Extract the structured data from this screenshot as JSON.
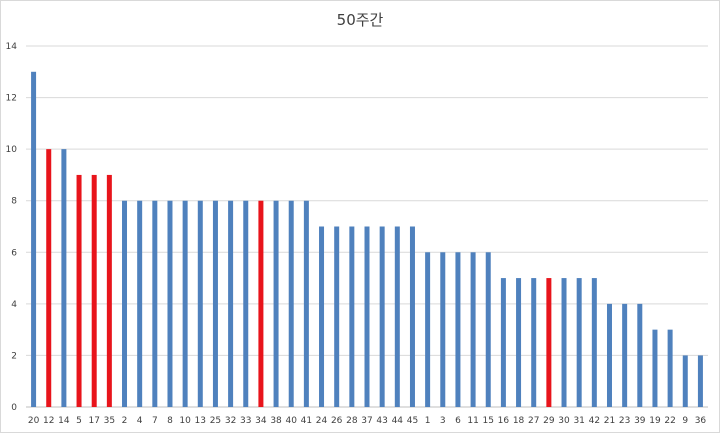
{
  "chart_data": {
    "type": "bar",
    "title": "50주간",
    "xlabel": "",
    "ylabel": "",
    "ylim": [
      0,
      14
    ],
    "yticks": [
      0,
      2,
      4,
      6,
      8,
      10,
      12,
      14
    ],
    "grid": true,
    "legend": "none",
    "categories": [
      "20",
      "12",
      "14",
      "5",
      "17",
      "35",
      "2",
      "4",
      "7",
      "8",
      "10",
      "13",
      "25",
      "32",
      "33",
      "34",
      "38",
      "40",
      "41",
      "24",
      "26",
      "28",
      "37",
      "43",
      "44",
      "45",
      "1",
      "3",
      "6",
      "11",
      "15",
      "16",
      "18",
      "27",
      "29",
      "30",
      "31",
      "42",
      "21",
      "23",
      "39",
      "19",
      "22",
      "9",
      "36"
    ],
    "values": [
      13,
      10,
      10,
      9,
      9,
      9,
      8,
      8,
      8,
      8,
      8,
      8,
      8,
      8,
      8,
      8,
      8,
      8,
      8,
      7,
      7,
      7,
      7,
      7,
      7,
      7,
      6,
      6,
      6,
      6,
      6,
      5,
      5,
      5,
      5,
      5,
      5,
      5,
      4,
      4,
      4,
      3,
      3,
      2,
      2
    ],
    "highlighted": [
      "12",
      "5",
      "17",
      "35",
      "34",
      "29"
    ],
    "colors": {
      "default": "#4f81bd",
      "highlight": "#e8141b",
      "grid": "#d9d9d9",
      "axis": "#bfbfbf"
    }
  }
}
